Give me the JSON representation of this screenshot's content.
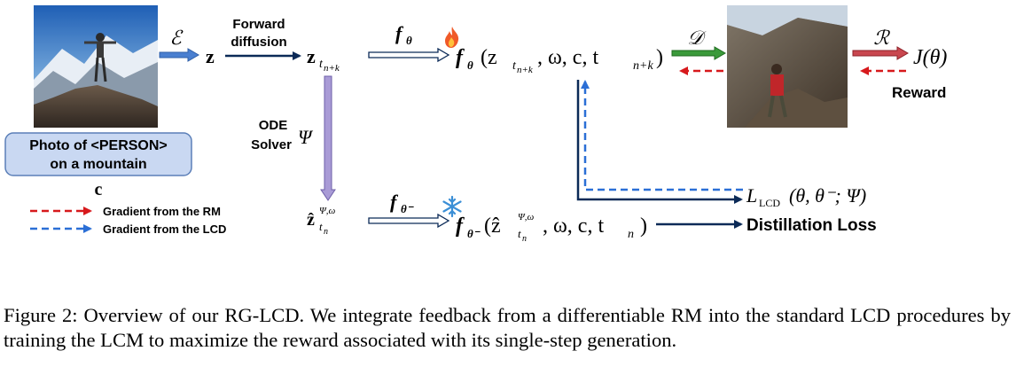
{
  "caption": "Figure 2: Overview of our RG-LCD. We integrate feedback from a differentiable RM into the standard LCD procedures by training the LCM to maximize the reward associated with its single-step generation.",
  "prompt_box": {
    "line1": "Photo of <PERSON>",
    "line2": "on a mountain"
  },
  "cond_label": "c",
  "labels": {
    "encoder": "ℰ",
    "latent": "z",
    "forward_line1": "Forward",
    "forward_line2": "diffusion",
    "noisy_latent": "z",
    "noisy_latent_sub": "t",
    "noisy_latent_subsub": "n+k",
    "f_theta": "f",
    "f_theta_sub": "θ",
    "f_main": "f",
    "f_main_sub": "θ",
    "f_main_args": "(z",
    "f_main_args_sub": "t",
    "f_main_args_subsub": "n+k",
    "f_main_args_rest": ", ω, c, t",
    "f_main_args_end_sub": "n+k",
    "f_main_close": ")",
    "decoder": "𝒟",
    "reward_model": "ℛ",
    "objective": "J(θ)",
    "reward_label": "Reward",
    "ode_line1": "ODE",
    "ode_line2": "Solver",
    "psi": "Ψ",
    "zhat": "ẑ",
    "zhat_sup": "Ψ,ω",
    "zhat_sub": "t",
    "zhat_subsub": "n",
    "f_minus": "f",
    "f_minus_sub": "θ⁻",
    "f_bottom": "f",
    "f_bottom_sub": "θ⁻",
    "f_bottom_open": "(ẑ",
    "f_bottom_sup": "Ψ,ω",
    "f_bottom_sub2": "t",
    "f_bottom_subsub": "n",
    "f_bottom_rest": ", ω, c, t",
    "f_bottom_rest_sub": "n",
    "f_bottom_close": ")",
    "loss": "L",
    "loss_sub": "LCD",
    "loss_args": "(θ, θ⁻; Ψ)",
    "distill_label": "Distillation Loss"
  },
  "legend": [
    {
      "label": "Gradient from the RM",
      "color": "#d7191c"
    },
    {
      "label": "Gradient from the LCD",
      "color": "#2b6fd6"
    }
  ],
  "icons": {
    "trainable": "fire-icon",
    "frozen": "snowflake-icon"
  },
  "colors": {
    "dark_arrow": "#0b2a57",
    "encoder_arrow": "#4a7fd0",
    "ode_arrow": "#a99bd6",
    "decoder_arrow": "#3a9a3a",
    "reward_arrow": "#c9474f",
    "rm_gradient": "#d7191c",
    "lcd_gradient": "#2b6fd6",
    "prompt_box_fill": "#c9d8f2"
  }
}
